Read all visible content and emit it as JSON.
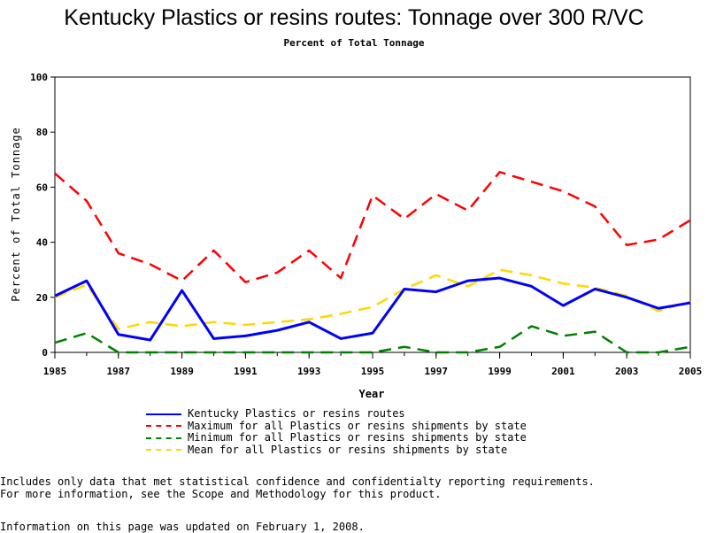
{
  "chart_data": {
    "type": "line",
    "title": "Kentucky Plastics or resins routes: Tonnage over 300 R/VC",
    "subtitle": "Percent of Total Tonnage",
    "xlabel": "Year",
    "ylabel": "Percent of Total Tonnage",
    "xlim": [
      1985,
      2005
    ],
    "ylim": [
      0,
      100
    ],
    "x_ticks": [
      "1985",
      "1987",
      "1989",
      "1991",
      "1993",
      "1995",
      "1997",
      "1999",
      "2001",
      "2003",
      "2005"
    ],
    "y_ticks": [
      "0",
      "20",
      "40",
      "60",
      "80",
      "100"
    ],
    "x": [
      1985,
      1986,
      1987,
      1988,
      1989,
      1990,
      1991,
      1992,
      1993,
      1994,
      1995,
      1996,
      1997,
      1998,
      1999,
      2000,
      2001,
      2002,
      2003,
      2004,
      2005
    ],
    "series": [
      {
        "name": "Kentucky Plastics or resins routes",
        "color": "#0000ff",
        "style": "solid",
        "values": [
          20.5,
          26,
          6.5,
          4.5,
          22.5,
          5,
          6,
          8,
          11,
          5,
          7,
          23,
          22,
          26,
          27,
          24,
          17,
          23,
          20,
          16,
          18
        ]
      },
      {
        "name": "Maximum for all Plastics or resins shipments by state",
        "color": "#ff0000",
        "style": "dashed",
        "values": [
          65,
          55,
          36,
          32,
          26,
          37,
          25.5,
          29,
          37,
          27,
          57,
          48.5,
          57.5,
          51.5,
          65.5,
          62,
          58.5,
          53,
          39,
          41,
          48
        ]
      },
      {
        "name": "Minimum for all Plastics or resins shipments by state",
        "color": "#008000",
        "style": "dashed",
        "values": [
          3.5,
          7,
          0,
          0,
          0,
          0,
          0,
          0,
          0,
          0,
          0,
          2,
          0,
          0,
          2,
          9.5,
          6,
          7.5,
          0,
          0,
          2
        ]
      },
      {
        "name": "Mean for all Plastics or resins shipments by state",
        "color": "#ffd700",
        "style": "dashed",
        "values": [
          20,
          24.5,
          8.5,
          11,
          9.5,
          11,
          10,
          11,
          12,
          14,
          16.5,
          23,
          28,
          24,
          30,
          28,
          25,
          23.5,
          20.5,
          15,
          18.5
        ]
      }
    ],
    "legend_position": "bottom",
    "grid": false
  },
  "notes": [
    "Includes only data that met statistical confidence and confidentialty reporting requirements.",
    "For more information, see the Scope and Methodology for this product."
  ],
  "updated": "Information on this page was updated on February 1, 2008."
}
